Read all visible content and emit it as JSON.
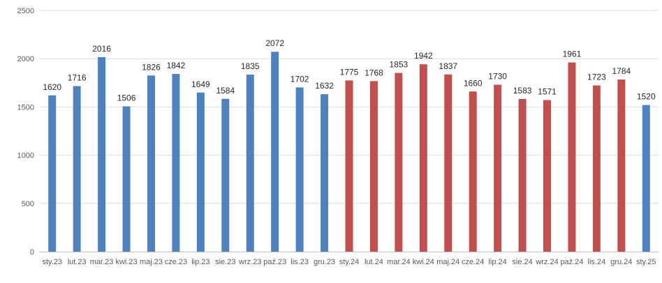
{
  "chart_data": {
    "type": "bar",
    "title": "",
    "xlabel": "",
    "ylabel": "",
    "ylim": [
      0,
      2500
    ],
    "yticks": [
      0,
      500,
      1000,
      1500,
      2000,
      2500
    ],
    "grid": true,
    "legend": "none",
    "categories": [
      "sty.23",
      "lut.23",
      "mar.23",
      "kwi.23",
      "maj.23",
      "cze.23",
      "lip.23",
      "sie.23",
      "wrz.23",
      "paź.23",
      "lis.23",
      "gru.23",
      "sty.24",
      "lut.24",
      "mar.24",
      "kwi.24",
      "maj.24",
      "cze.24",
      "lip.24",
      "sie.24",
      "wrz.24",
      "paź.24",
      "lis.24",
      "gru.24",
      "sty.25"
    ],
    "values": [
      1620,
      1716,
      2016,
      1506,
      1826,
      1842,
      1649,
      1584,
      1835,
      2072,
      1702,
      1632,
      1775,
      1768,
      1853,
      1942,
      1837,
      1660,
      1730,
      1583,
      1571,
      1961,
      1723,
      1784,
      1520
    ],
    "bar_colors": [
      "#4f81bd",
      "#4f81bd",
      "#4f81bd",
      "#4f81bd",
      "#4f81bd",
      "#4f81bd",
      "#4f81bd",
      "#4f81bd",
      "#4f81bd",
      "#4f81bd",
      "#4f81bd",
      "#4f81bd",
      "#c0504d",
      "#c0504d",
      "#c0504d",
      "#c0504d",
      "#c0504d",
      "#c0504d",
      "#c0504d",
      "#c0504d",
      "#c0504d",
      "#c0504d",
      "#c0504d",
      "#c0504d",
      "#4f81bd"
    ],
    "colors": {
      "year_2023": "#4f81bd",
      "year_2024": "#c0504d",
      "year_2025": "#4f81bd"
    }
  }
}
